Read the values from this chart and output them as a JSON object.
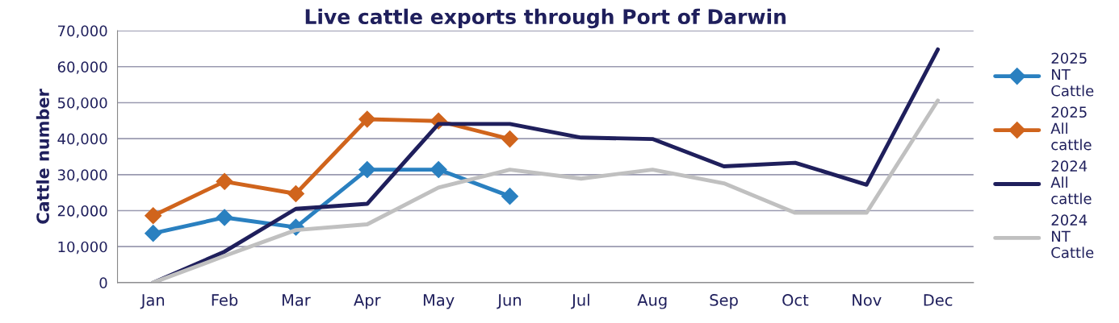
{
  "chart_data": {
    "type": "line",
    "title": "Live cattle exports through Port of Darwin",
    "ylabel": "Cattle number",
    "categories": [
      "Jan",
      "Feb",
      "Mar",
      "Apr",
      "May",
      "Jun",
      "Jul",
      "Aug",
      "Sep",
      "Oct",
      "Nov",
      "Dec"
    ],
    "ylim": [
      0,
      70000
    ],
    "yticks": [
      {
        "value": 0,
        "label": "0"
      },
      {
        "value": 10000,
        "label": "10,000"
      },
      {
        "value": 20000,
        "label": "20,000"
      },
      {
        "value": 30000,
        "label": "30,000"
      },
      {
        "value": 40000,
        "label": "40,000"
      },
      {
        "value": 50000,
        "label": "50,000"
      },
      {
        "value": 60000,
        "label": "60,000"
      },
      {
        "value": 70000,
        "label": "70,000"
      }
    ],
    "grid": "y",
    "legend": "right",
    "series": [
      {
        "name": "2025 NT Cattle",
        "color": "#2a80c0",
        "marker": "diamond",
        "values": [
          13700,
          18100,
          15400,
          31400,
          31400,
          24000,
          null,
          null,
          null,
          null,
          null,
          null
        ]
      },
      {
        "name": "2025 All cattle",
        "color": "#d0641c",
        "marker": "diamond",
        "values": [
          18600,
          28100,
          24700,
          45400,
          44900,
          39900,
          null,
          null,
          null,
          null,
          null,
          null
        ]
      },
      {
        "name": "2024 All cattle",
        "color": "#1f1f5c",
        "marker": "none",
        "values": [
          0,
          8600,
          20500,
          21900,
          44100,
          44100,
          40300,
          39900,
          32300,
          33300,
          27200,
          64800
        ]
      },
      {
        "name": "2024 NT Cattle",
        "color": "#c0c0c0",
        "marker": "none",
        "values": [
          0,
          7400,
          14600,
          16200,
          26400,
          31400,
          28900,
          31400,
          27600,
          19400,
          19400,
          50600
        ]
      }
    ]
  }
}
